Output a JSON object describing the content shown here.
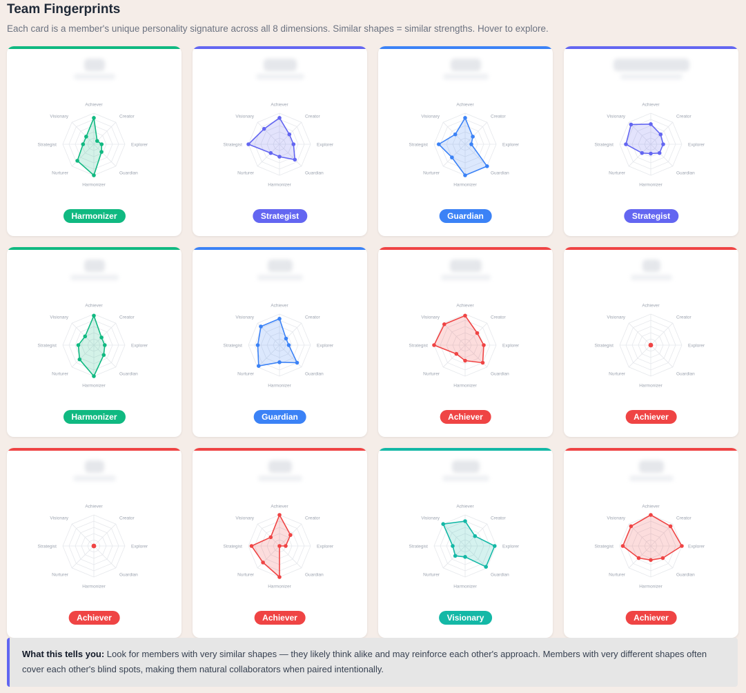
{
  "page": {
    "title": "Team Fingerprints",
    "subtitle": "Each card is a member's unique personality signature across all 8 dimensions. Similar shapes = similar strengths. Hover to explore."
  },
  "dimensions": [
    "Achiever",
    "Creator",
    "Explorer",
    "Guardian",
    "Harmonizer",
    "Nurturer",
    "Strategist",
    "Visionary"
  ],
  "type_colors": {
    "Harmonizer": "#10b981",
    "Strategist": "#6366f1",
    "Guardian": "#3b82f6",
    "Achiever": "#ef4444",
    "Visionary": "#14b8a6"
  },
  "members": [
    {
      "type": "Harmonizer",
      "values": [
        0.85,
        0.15,
        0.25,
        0.35,
        1.0,
        0.75,
        0.35,
        0.35
      ]
    },
    {
      "type": "Strategist",
      "values": [
        0.85,
        0.45,
        0.45,
        0.7,
        0.4,
        0.4,
        1.0,
        0.7
      ]
    },
    {
      "type": "Guardian",
      "values": [
        0.85,
        0.35,
        0.2,
        1.0,
        1.0,
        0.6,
        0.85,
        0.45
      ]
    },
    {
      "type": "Strategist",
      "values": [
        0.65,
        0.45,
        0.4,
        0.4,
        0.3,
        0.4,
        0.8,
        0.9
      ]
    },
    {
      "type": "Harmonizer",
      "values": [
        0.95,
        0.35,
        0.35,
        0.45,
        1.0,
        0.65,
        0.5,
        0.4
      ]
    },
    {
      "type": "Guardian",
      "values": [
        0.85,
        0.3,
        0.3,
        0.8,
        0.55,
        0.95,
        0.7,
        0.85
      ]
    },
    {
      "type": "Achiever",
      "values": [
        0.95,
        0.55,
        0.6,
        0.8,
        0.5,
        0.4,
        1.0,
        0.95
      ]
    },
    {
      "type": "Achiever",
      "values": [
        0,
        0,
        0,
        0,
        0,
        0,
        0,
        0
      ]
    },
    {
      "type": "Achiever",
      "values": [
        0,
        0,
        0,
        0,
        0,
        0,
        0,
        0
      ]
    },
    {
      "type": "Achiever",
      "values": [
        1.0,
        0.5,
        0.2,
        0.0,
        1.0,
        0.75,
        0.9,
        0.4
      ]
    },
    {
      "type": "Visionary",
      "values": [
        0.8,
        0.45,
        0.95,
        0.95,
        0.35,
        0.45,
        0.4,
        1.0
      ]
    },
    {
      "type": "Achiever",
      "values": [
        1.0,
        0.9,
        1.0,
        0.55,
        0.45,
        0.55,
        0.9,
        0.9
      ]
    }
  ],
  "callout": {
    "label": "What this tells you:",
    "text": " Look for members with very similar shapes — they likely think alike and may reinforce each other's approach. Members with very different shapes often cover each other's blind spots, making them natural collaborators when paired intentionally."
  }
}
